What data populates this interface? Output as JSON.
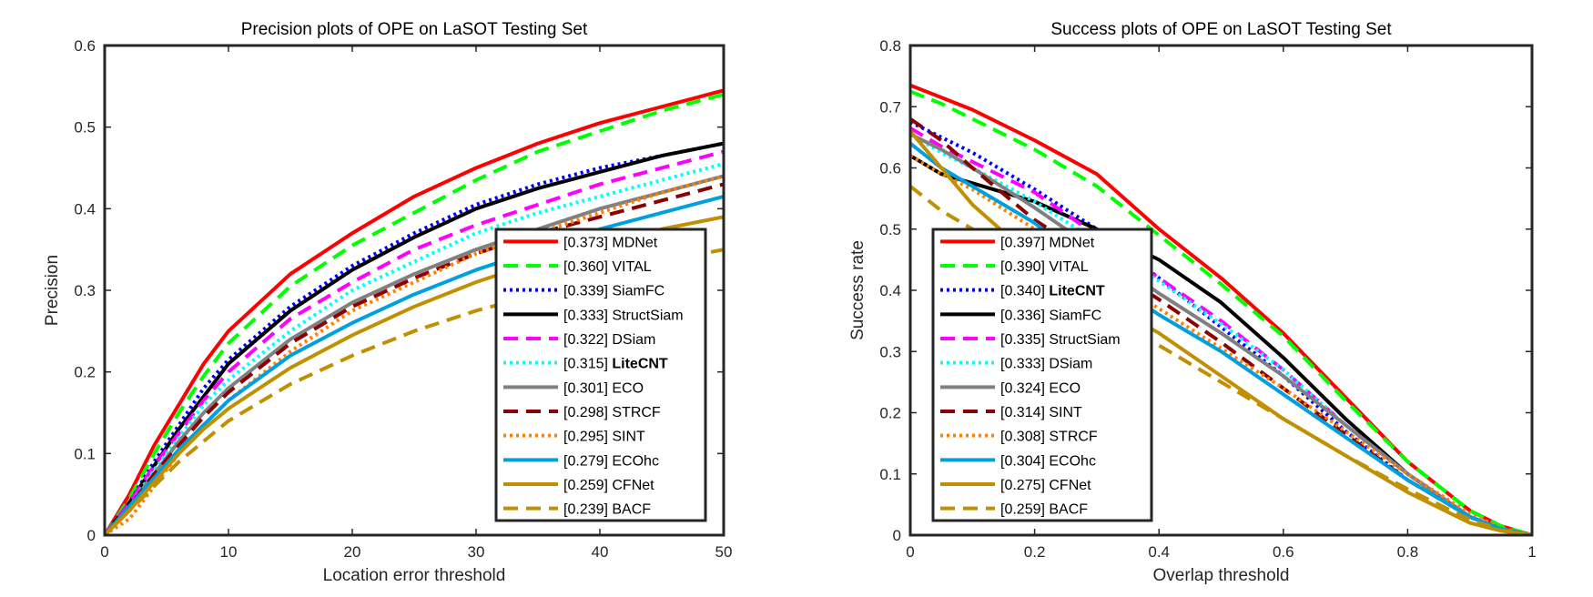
{
  "chart_data": [
    {
      "type": "line",
      "title": "Precision plots of OPE on LaSOT Testing Set",
      "xlabel": "Location error threshold",
      "ylabel": "Precision",
      "xlim": [
        0,
        50
      ],
      "ylim": [
        0,
        0.6
      ],
      "xticks": [
        "0",
        "10",
        "20",
        "30",
        "40",
        "50"
      ],
      "yticks": [
        "0",
        "0.1",
        "0.2",
        "0.3",
        "0.4",
        "0.5",
        "0.6"
      ],
      "grid": false,
      "legend_position": "bottom-right",
      "x": [
        0,
        2,
        4,
        6,
        8,
        10,
        15,
        20,
        25,
        30,
        35,
        40,
        45,
        50
      ],
      "series": [
        {
          "name": "MDNet",
          "score": "[0.373]",
          "bold": false,
          "color": "#ff0000",
          "dash": "solid",
          "values": [
            0,
            0.05,
            0.11,
            0.16,
            0.21,
            0.25,
            0.32,
            0.37,
            0.415,
            0.45,
            0.48,
            0.505,
            0.525,
            0.545
          ]
        },
        {
          "name": "VITAL",
          "score": "[0.360]",
          "bold": false,
          "color": "#00ff00",
          "dash": "dash",
          "values": [
            0,
            0.045,
            0.1,
            0.15,
            0.195,
            0.235,
            0.305,
            0.355,
            0.395,
            0.435,
            0.47,
            0.495,
            0.52,
            0.54
          ]
        },
        {
          "name": "SiamFC",
          "score": "[0.339]",
          "bold": false,
          "color": "#0000ff",
          "dash": "dot",
          "values": [
            0,
            0.04,
            0.09,
            0.135,
            0.18,
            0.215,
            0.28,
            0.33,
            0.37,
            0.405,
            0.43,
            0.45,
            0.465,
            0.48
          ]
        },
        {
          "name": "StructSiam",
          "score": "[0.333]",
          "bold": false,
          "color": "#000000",
          "dash": "solid",
          "values": [
            0,
            0.04,
            0.085,
            0.13,
            0.17,
            0.21,
            0.275,
            0.325,
            0.365,
            0.4,
            0.425,
            0.445,
            0.465,
            0.48
          ]
        },
        {
          "name": "DSiam",
          "score": "[0.322]",
          "bold": false,
          "color": "#ff00ff",
          "dash": "dash",
          "values": [
            0,
            0.04,
            0.085,
            0.125,
            0.165,
            0.2,
            0.265,
            0.31,
            0.35,
            0.38,
            0.405,
            0.43,
            0.45,
            0.47
          ]
        },
        {
          "name": "LiteCNT",
          "score": "[0.315]",
          "bold": true,
          "color": "#00ffff",
          "dash": "dot",
          "values": [
            0,
            0.035,
            0.08,
            0.12,
            0.16,
            0.19,
            0.25,
            0.3,
            0.335,
            0.37,
            0.395,
            0.415,
            0.435,
            0.455
          ]
        },
        {
          "name": "ECO",
          "score": "[0.301]",
          "bold": false,
          "color": "#808080",
          "dash": "solid",
          "values": [
            0,
            0.035,
            0.075,
            0.115,
            0.15,
            0.18,
            0.24,
            0.285,
            0.32,
            0.35,
            0.375,
            0.4,
            0.42,
            0.44
          ]
        },
        {
          "name": "STRCF",
          "score": "[0.298]",
          "bold": false,
          "color": "#8b0000",
          "dash": "dash",
          "values": [
            0,
            0.035,
            0.075,
            0.11,
            0.145,
            0.175,
            0.235,
            0.28,
            0.315,
            0.345,
            0.37,
            0.39,
            0.41,
            0.43
          ]
        },
        {
          "name": "SINT",
          "score": "[0.295]",
          "bold": false,
          "color": "#ff8000",
          "dash": "dot",
          "values": [
            0,
            0.02,
            0.06,
            0.1,
            0.135,
            0.165,
            0.225,
            0.275,
            0.31,
            0.345,
            0.37,
            0.395,
            0.42,
            0.44
          ]
        },
        {
          "name": "ECOhc",
          "score": "[0.279]",
          "bold": false,
          "color": "#00a0e0",
          "dash": "solid",
          "values": [
            0,
            0.035,
            0.07,
            0.105,
            0.135,
            0.165,
            0.22,
            0.26,
            0.295,
            0.325,
            0.35,
            0.375,
            0.395,
            0.415
          ]
        },
        {
          "name": "CFNet",
          "score": "[0.259]",
          "bold": false,
          "color": "#c09000",
          "dash": "solid",
          "values": [
            0,
            0.03,
            0.065,
            0.1,
            0.13,
            0.155,
            0.205,
            0.245,
            0.28,
            0.31,
            0.335,
            0.355,
            0.375,
            0.39
          ]
        },
        {
          "name": "BACF",
          "score": "[0.239]",
          "bold": false,
          "color": "#c09000",
          "dash": "dash",
          "values": [
            0,
            0.03,
            0.06,
            0.09,
            0.115,
            0.14,
            0.185,
            0.22,
            0.25,
            0.275,
            0.295,
            0.315,
            0.335,
            0.35
          ]
        }
      ]
    },
    {
      "type": "line",
      "title": "Success plots of OPE on LaSOT Testing Set",
      "xlabel": "Overlap threshold",
      "ylabel": "Success rate",
      "xlim": [
        0,
        1
      ],
      "ylim": [
        0,
        0.8
      ],
      "xticks": [
        "0",
        "0.2",
        "0.4",
        "0.6",
        "0.8",
        "1"
      ],
      "yticks": [
        "0",
        "0.1",
        "0.2",
        "0.3",
        "0.4",
        "0.5",
        "0.6",
        "0.7",
        "0.8"
      ],
      "grid": false,
      "legend_position": "bottom-left",
      "x": [
        0,
        0.05,
        0.1,
        0.2,
        0.3,
        0.4,
        0.5,
        0.6,
        0.7,
        0.8,
        0.9,
        0.95,
        1
      ],
      "series": [
        {
          "name": "MDNet",
          "score": "[0.397]",
          "bold": false,
          "color": "#ff0000",
          "dash": "solid",
          "values": [
            0.735,
            0.715,
            0.695,
            0.645,
            0.59,
            0.5,
            0.42,
            0.33,
            0.225,
            0.12,
            0.04,
            0.015,
            0
          ]
        },
        {
          "name": "VITAL",
          "score": "[0.390]",
          "bold": false,
          "color": "#00ff00",
          "dash": "dash",
          "values": [
            0.725,
            0.705,
            0.68,
            0.63,
            0.57,
            0.49,
            0.41,
            0.325,
            0.22,
            0.12,
            0.04,
            0.015,
            0
          ]
        },
        {
          "name": "LiteCNT",
          "score": "[0.340]",
          "bold": true,
          "color": "#0000ff",
          "dash": "dot",
          "values": [
            0.675,
            0.65,
            0.625,
            0.565,
            0.5,
            0.42,
            0.34,
            0.26,
            0.17,
            0.09,
            0.03,
            0.01,
            0
          ]
        },
        {
          "name": "SiamFC",
          "score": "[0.336]",
          "bold": false,
          "color": "#000000",
          "dash": "solid",
          "values": [
            0.62,
            0.59,
            0.575,
            0.545,
            0.5,
            0.45,
            0.38,
            0.29,
            0.19,
            0.1,
            0.03,
            0.01,
            0
          ]
        },
        {
          "name": "StructSiam",
          "score": "[0.335]",
          "bold": false,
          "color": "#ff00ff",
          "dash": "dash",
          "values": [
            0.665,
            0.635,
            0.61,
            0.56,
            0.49,
            0.42,
            0.35,
            0.27,
            0.18,
            0.1,
            0.03,
            0.01,
            0
          ]
        },
        {
          "name": "DSiam",
          "score": "[0.333]",
          "bold": false,
          "color": "#00ffff",
          "dash": "dot",
          "values": [
            0.655,
            0.625,
            0.6,
            0.545,
            0.48,
            0.415,
            0.345,
            0.27,
            0.18,
            0.1,
            0.03,
            0.01,
            0
          ]
        },
        {
          "name": "ECO",
          "score": "[0.324]",
          "bold": false,
          "color": "#808080",
          "dash": "solid",
          "values": [
            0.655,
            0.63,
            0.6,
            0.535,
            0.465,
            0.395,
            0.33,
            0.26,
            0.18,
            0.1,
            0.03,
            0.01,
            0
          ]
        },
        {
          "name": "SINT",
          "score": "[0.314]",
          "bold": false,
          "color": "#8b0000",
          "dash": "dash",
          "values": [
            0.68,
            0.645,
            0.6,
            0.515,
            0.45,
            0.385,
            0.315,
            0.24,
            0.165,
            0.09,
            0.03,
            0.01,
            0
          ]
        },
        {
          "name": "STRCF",
          "score": "[0.308]",
          "bold": false,
          "color": "#ff8000",
          "dash": "dot",
          "values": [
            0.62,
            0.59,
            0.565,
            0.5,
            0.435,
            0.37,
            0.305,
            0.24,
            0.17,
            0.1,
            0.035,
            0.012,
            0
          ]
        },
        {
          "name": "ECOhc",
          "score": "[0.304]",
          "bold": false,
          "color": "#00a0e0",
          "dash": "solid",
          "values": [
            0.64,
            0.6,
            0.57,
            0.51,
            0.43,
            0.36,
            0.3,
            0.23,
            0.16,
            0.09,
            0.03,
            0.01,
            0
          ]
        },
        {
          "name": "CFNet",
          "score": "[0.275]",
          "bold": false,
          "color": "#c09000",
          "dash": "solid",
          "values": [
            0.66,
            0.6,
            0.54,
            0.45,
            0.39,
            0.33,
            0.26,
            0.19,
            0.13,
            0.07,
            0.02,
            0.007,
            0
          ]
        },
        {
          "name": "BACF",
          "score": "[0.259]",
          "bold": false,
          "color": "#c09000",
          "dash": "dash",
          "values": [
            0.57,
            0.53,
            0.5,
            0.43,
            0.37,
            0.31,
            0.25,
            0.19,
            0.13,
            0.075,
            0.025,
            0.008,
            0
          ]
        }
      ]
    }
  ]
}
